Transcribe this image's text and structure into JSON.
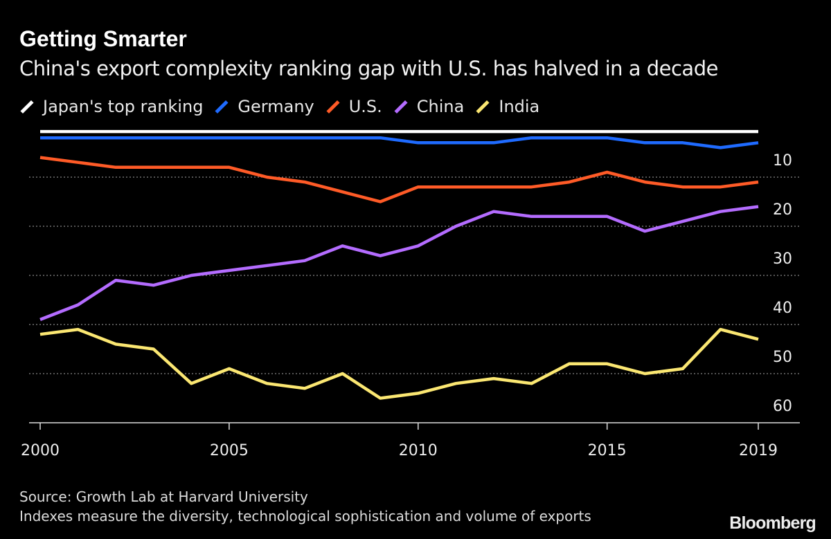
{
  "header": {
    "title": "Getting Smarter",
    "subtitle": "China's export complexity ranking gap with U.S. has halved in a decade"
  },
  "footer": {
    "source": "Source: Growth Lab at Harvard University",
    "note": "Indexes measure the diversity, technological sophistication and volume of exports",
    "logo": "Bloomberg"
  },
  "chart_data": {
    "type": "line",
    "title": "Getting Smarter",
    "subtitle": "China's export complexity ranking gap with U.S. has halved in a decade",
    "xlabel": "",
    "ylabel": "",
    "x": [
      2000,
      2001,
      2002,
      2003,
      2004,
      2005,
      2006,
      2007,
      2008,
      2009,
      2010,
      2011,
      2012,
      2013,
      2014,
      2015,
      2016,
      2017,
      2018,
      2019
    ],
    "x_ticks": [
      2000,
      2005,
      2010,
      2015,
      2019
    ],
    "y_ticks": [
      10,
      20,
      30,
      40,
      50,
      60
    ],
    "ylim": [
      60,
      0
    ],
    "y_inverted": true,
    "grid": "horizontal dotted",
    "legend_placement": "top-left",
    "series": [
      {
        "name": "Japan's top ranking",
        "color": "#ffffff",
        "values": [
          1,
          1,
          1,
          1,
          1,
          1,
          1,
          1,
          1,
          1,
          1,
          1,
          1,
          1,
          1,
          1,
          1,
          1,
          1,
          1
        ]
      },
      {
        "name": "Germany",
        "color": "#1f6bff",
        "values": [
          2,
          2,
          2,
          2,
          2,
          2,
          2,
          2,
          2,
          2,
          3,
          3,
          3,
          2,
          2,
          2,
          3,
          3,
          4,
          3
        ]
      },
      {
        "name": "U.S.",
        "color": "#ff5b27",
        "values": [
          6,
          7,
          8,
          8,
          8,
          8,
          10,
          11,
          13,
          15,
          12,
          12,
          12,
          12,
          11,
          9,
          11,
          12,
          12,
          11
        ]
      },
      {
        "name": "China",
        "color": "#b46cff",
        "values": [
          39,
          36,
          31,
          32,
          30,
          29,
          28,
          27,
          24,
          26,
          24,
          20,
          17,
          18,
          18,
          18,
          21,
          19,
          17,
          16
        ]
      },
      {
        "name": "India",
        "color": "#fbe772",
        "values": [
          42,
          41,
          44,
          45,
          52,
          49,
          52,
          53,
          50,
          55,
          54,
          52,
          51,
          52,
          48,
          48,
          50,
          49,
          41,
          43
        ]
      }
    ]
  }
}
